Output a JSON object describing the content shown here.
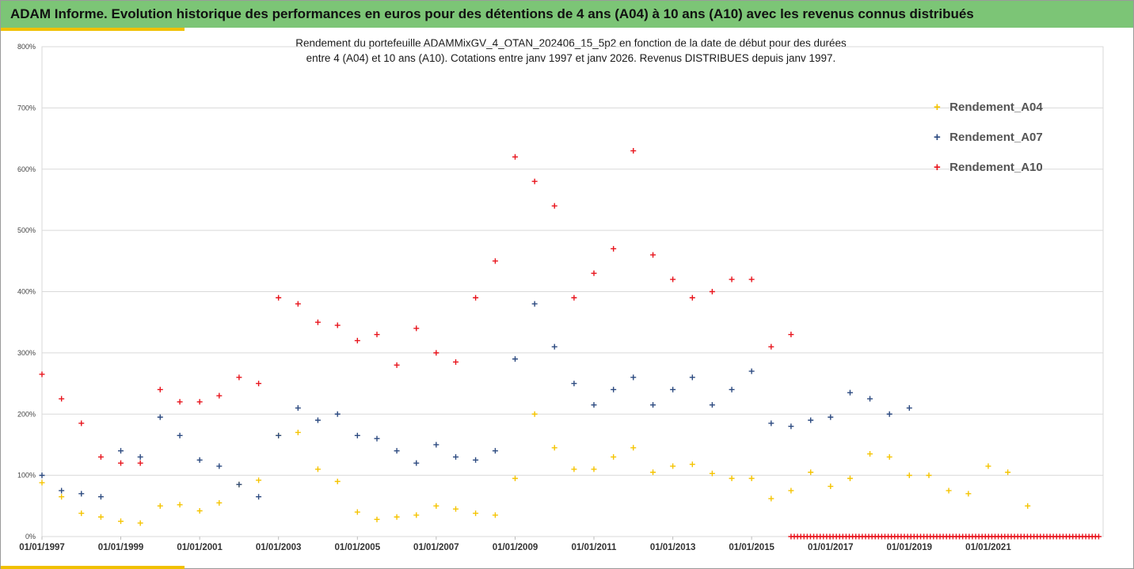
{
  "banner": {
    "title": "ADAM Informe. Evolution historique des performances en euros pour des détentions de 4 ans (A04) à 10 ans (A10) avec les revenus connus distribués"
  },
  "colors": {
    "banner": "#7cc576",
    "accent": "#f0c000",
    "A04": "#f5c400",
    "A07": "#2c4a80",
    "A10": "#e8141c"
  },
  "chart_data": {
    "type": "scatter",
    "title_line1": "Rendement du portefeuille ADAMMixGV_4_OTAN_202406_15_5p2  en fonction de la date de début pour des durées",
    "title_line2": "entre 4 (A04) et 10 ans (A10). Cotations entre janv 1997 et janv 2026. Revenus DISTRIBUES depuis janv 1997.",
    "xlabel": "",
    "ylabel": "",
    "xlim": [
      "1997-01-01",
      "2023-12-01"
    ],
    "ylim": [
      0,
      800
    ],
    "y_ticks": [
      "0%",
      "100%",
      "200%",
      "300%",
      "400%",
      "500%",
      "600%",
      "700%",
      "800%"
    ],
    "x_ticks": [
      "01/01/1997",
      "01/01/1999",
      "01/01/2001",
      "01/01/2003",
      "01/01/2005",
      "01/01/2007",
      "01/01/2009",
      "01/01/2011",
      "01/01/2013",
      "01/01/2015",
      "01/01/2017",
      "01/01/2019",
      "01/01/2021"
    ],
    "grid": "horizontal",
    "legend_position": "right",
    "series": [
      {
        "name": "Rendement_A04",
        "x": [
          "1997-01-01",
          "1997-07-01",
          "1998-01-01",
          "1998-07-01",
          "1999-01-01",
          "1999-07-01",
          "2000-01-01",
          "2000-07-01",
          "2001-01-01",
          "2001-07-01",
          "2002-01-01",
          "2002-07-01",
          "2003-01-01",
          "2003-07-01",
          "2004-01-01",
          "2004-07-01",
          "2005-01-01",
          "2005-07-01",
          "2006-01-01",
          "2006-07-01",
          "2007-01-01",
          "2007-07-01",
          "2008-01-01",
          "2008-07-01",
          "2009-01-01",
          "2009-07-01",
          "2010-01-01",
          "2010-07-01",
          "2011-01-01",
          "2011-07-01",
          "2012-01-01",
          "2012-07-01",
          "2013-01-01",
          "2013-07-01",
          "2014-01-01",
          "2014-07-01",
          "2015-01-01",
          "2015-07-01",
          "2016-01-01",
          "2016-07-01",
          "2017-01-01",
          "2017-07-01",
          "2018-01-01",
          "2018-07-01",
          "2019-01-01",
          "2019-07-01",
          "2020-01-01",
          "2020-07-01",
          "2021-01-01",
          "2021-07-01",
          "2022-01-01"
        ],
        "values": [
          88,
          65,
          38,
          32,
          25,
          22,
          50,
          52,
          42,
          55,
          85,
          92,
          165,
          170,
          110,
          90,
          40,
          28,
          32,
          35,
          50,
          45,
          38,
          35,
          95,
          200,
          145,
          110,
          110,
          130,
          145,
          105,
          115,
          118,
          103,
          95,
          95,
          62,
          75,
          105,
          82,
          95,
          135,
          130,
          100,
          100,
          75,
          70,
          115,
          105,
          50
        ]
      },
      {
        "name": "Rendement_A07",
        "x": [
          "1997-01-01",
          "1997-07-01",
          "1998-01-01",
          "1998-07-01",
          "1999-01-01",
          "1999-07-01",
          "2000-01-01",
          "2000-07-01",
          "2001-01-01",
          "2001-07-01",
          "2002-01-01",
          "2002-07-01",
          "2003-01-01",
          "2003-07-01",
          "2004-01-01",
          "2004-07-01",
          "2005-01-01",
          "2005-07-01",
          "2006-01-01",
          "2006-07-01",
          "2007-01-01",
          "2007-07-01",
          "2008-01-01",
          "2008-07-01",
          "2009-01-01",
          "2009-07-01",
          "2010-01-01",
          "2010-07-01",
          "2011-01-01",
          "2011-07-01",
          "2012-01-01",
          "2012-07-01",
          "2013-01-01",
          "2013-07-01",
          "2014-01-01",
          "2014-07-01",
          "2015-01-01",
          "2015-07-01",
          "2016-01-01",
          "2016-07-01",
          "2017-01-01",
          "2017-07-01",
          "2018-01-01",
          "2018-07-01",
          "2019-01-01"
        ],
        "values": [
          100,
          75,
          70,
          65,
          140,
          130,
          195,
          165,
          125,
          115,
          85,
          65,
          165,
          210,
          190,
          200,
          165,
          160,
          140,
          120,
          150,
          130,
          125,
          140,
          290,
          380,
          310,
          250,
          215,
          240,
          260,
          215,
          240,
          260,
          215,
          240,
          270,
          185,
          180,
          190,
          195,
          235,
          225,
          200,
          210
        ]
      },
      {
        "name": "Rendement_A10",
        "x": [
          "1997-01-01",
          "1997-07-01",
          "1998-01-01",
          "1998-07-01",
          "1999-01-01",
          "1999-07-01",
          "2000-01-01",
          "2000-07-01",
          "2001-01-01",
          "2001-07-01",
          "2002-01-01",
          "2002-07-01",
          "2003-01-01",
          "2003-07-01",
          "2004-01-01",
          "2004-07-01",
          "2005-01-01",
          "2005-07-01",
          "2006-01-01",
          "2006-07-01",
          "2007-01-01",
          "2007-07-01",
          "2008-01-01",
          "2008-07-01",
          "2009-01-01",
          "2009-07-01",
          "2010-01-01",
          "2010-07-01",
          "2011-01-01",
          "2011-07-01",
          "2012-01-01",
          "2012-07-01",
          "2013-01-01",
          "2013-07-01",
          "2014-01-01",
          "2014-07-01",
          "2015-01-01",
          "2015-07-01",
          "2016-01-01"
        ],
        "values": [
          265,
          225,
          185,
          130,
          120,
          120,
          240,
          220,
          220,
          230,
          260,
          250,
          390,
          380,
          350,
          345,
          320,
          330,
          280,
          340,
          300,
          285,
          390,
          450,
          620,
          580,
          540,
          390,
          430,
          470,
          630,
          460,
          420,
          390,
          400,
          420,
          420,
          310,
          330
        ]
      }
    ],
    "zero_markers": {
      "series": "Rendement_A10",
      "from": "2016-01-01",
      "to": "2023-11-01",
      "value": 0
    }
  }
}
